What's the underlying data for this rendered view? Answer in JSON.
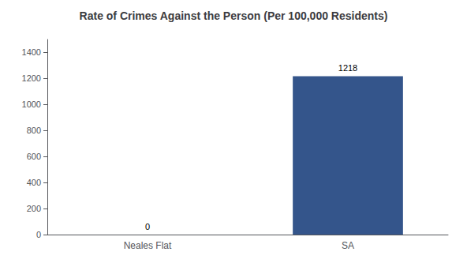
{
  "chart_data": {
    "type": "bar",
    "title": "Rate of Crimes Against the Person (Per 100,000 Residents)",
    "categories": [
      "Neales Flat",
      "SA"
    ],
    "values": [
      0,
      1218
    ],
    "color": "#34558b",
    "ylim": [
      0,
      1500
    ],
    "yticks": [
      0,
      200,
      400,
      600,
      800,
      1000,
      1200,
      1400
    ],
    "grid": false,
    "data_labels": true
  }
}
